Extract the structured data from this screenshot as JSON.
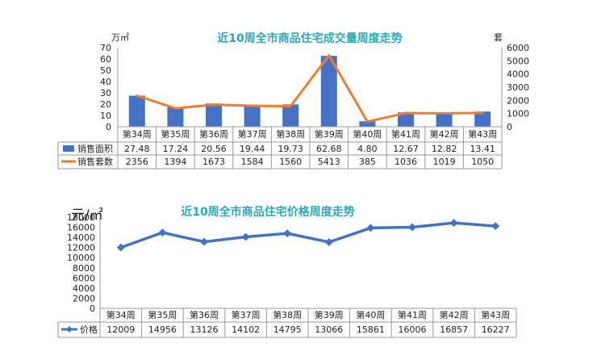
{
  "chart_data": [
    {
      "type": "bar",
      "title": "近10周全市商品住宅成交量周度走势",
      "left_unit": "万㎡",
      "right_unit": "套",
      "categories": [
        "第34周",
        "第35周",
        "第36周",
        "第37周",
        "第38周",
        "第39周",
        "第40周",
        "第41周",
        "第42周",
        "第43周"
      ],
      "ylim_left": [
        0,
        70
      ],
      "ylim_right": [
        0,
        6000
      ],
      "left_ticks": [
        "0",
        "10",
        "20",
        "30",
        "40",
        "50",
        "60",
        "70"
      ],
      "right_ticks": [
        "0",
        "1000",
        "2000",
        "3000",
        "4000",
        "5000",
        "6000"
      ],
      "series": [
        {
          "name": "销售面积",
          "type": "bar",
          "axis": "left",
          "color": "#4472C4",
          "values": [
            27.48,
            17.24,
            20.56,
            19.44,
            19.73,
            62.68,
            4.8,
            12.67,
            12.82,
            13.41
          ],
          "labels": [
            "27.48",
            "17.24",
            "20.56",
            "19.44",
            "19.73",
            "62.68",
            "4.80",
            "12.67",
            "12.82",
            "13.41"
          ]
        },
        {
          "name": "销售套数",
          "type": "line",
          "axis": "right",
          "color": "#ED7D31",
          "values": [
            2356,
            1394,
            1673,
            1584,
            1560,
            5413,
            385,
            1036,
            1019,
            1050
          ],
          "labels": [
            "2356",
            "1394",
            "1673",
            "1584",
            "1560",
            "5413",
            "385",
            "1036",
            "1019",
            "1050"
          ]
        }
      ]
    },
    {
      "type": "line",
      "title": "近10周全市商品住宅价格周度走势",
      "left_unit": "元/㎡",
      "categories": [
        "第34周",
        "第35周",
        "第36周",
        "第37周",
        "第38周",
        "第39周",
        "第40周",
        "第41周",
        "第42周",
        "第43周"
      ],
      "ylim": [
        0,
        18000
      ],
      "left_ticks": [
        "0",
        "2000",
        "4000",
        "6000",
        "8000",
        "10000",
        "12000",
        "14000",
        "16000",
        "18000"
      ],
      "series": [
        {
          "name": "价格",
          "type": "line",
          "color": "#4472C4",
          "values": [
            12009,
            14956,
            13126,
            14102,
            14795,
            13066,
            15861,
            16006,
            16857,
            16227
          ],
          "labels": [
            "12009",
            "14956",
            "13126",
            "14102",
            "14795",
            "13066",
            "15861",
            "16006",
            "16857",
            "16227"
          ]
        }
      ]
    }
  ]
}
